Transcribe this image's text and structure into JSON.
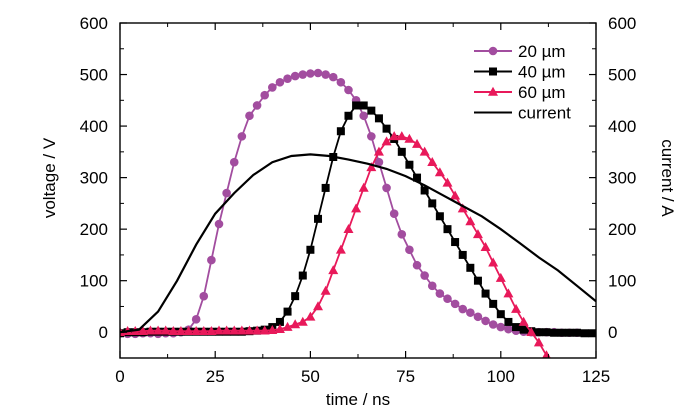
{
  "chart_data": {
    "type": "line",
    "xlabel": "time / ns",
    "ylabel": "voltage / V",
    "y2label": "current / A",
    "xlim": [
      0,
      125
    ],
    "ylim": [
      -50,
      600
    ],
    "y2lim": [
      -50,
      600
    ],
    "x_ticks": [
      "0",
      "25",
      "50",
      "75",
      "100",
      "125"
    ],
    "y_ticks": [
      "0",
      "100",
      "200",
      "300",
      "400",
      "500",
      "600"
    ],
    "y2_ticks": [
      "0",
      "100",
      "200",
      "300",
      "400",
      "500",
      "600"
    ],
    "grid": false,
    "legend_position": "top-right",
    "series": [
      {
        "name": "20 µm",
        "color": "#a24d9f",
        "marker": "circle",
        "axis": "left",
        "x": [
          0,
          2,
          4,
          6,
          8,
          10,
          12,
          14,
          16,
          18,
          20,
          22,
          24,
          26,
          28,
          30,
          32,
          34,
          36,
          38,
          40,
          42,
          44,
          46,
          48,
          50,
          52,
          54,
          56,
          58,
          60,
          62,
          64,
          66,
          68,
          70,
          72,
          74,
          76,
          78,
          80,
          82,
          84,
          86,
          88,
          90,
          92,
          94,
          96,
          98,
          100,
          102,
          104,
          106,
          108,
          110,
          112,
          114,
          116,
          118,
          120
        ],
        "y": [
          -2,
          -3,
          -3,
          -2,
          -2,
          -3,
          -2,
          -2,
          0,
          5,
          25,
          70,
          140,
          210,
          270,
          330,
          380,
          420,
          440,
          460,
          475,
          485,
          492,
          497,
          500,
          502,
          503,
          500,
          495,
          485,
          470,
          450,
          420,
          380,
          330,
          280,
          230,
          190,
          160,
          130,
          110,
          90,
          75,
          65,
          55,
          45,
          38,
          30,
          22,
          15,
          10,
          6,
          3,
          1,
          0,
          0,
          0,
          0,
          -1,
          -1,
          -1
        ]
      },
      {
        "name": "40 µm",
        "color": "#000000",
        "marker": "square",
        "axis": "left",
        "x": [
          0,
          2,
          4,
          6,
          8,
          10,
          12,
          14,
          16,
          18,
          20,
          22,
          24,
          26,
          28,
          30,
          32,
          34,
          36,
          38,
          40,
          42,
          44,
          46,
          48,
          50,
          52,
          54,
          56,
          58,
          60,
          62,
          64,
          66,
          68,
          70,
          72,
          74,
          76,
          78,
          80,
          82,
          84,
          86,
          88,
          90,
          92,
          94,
          96,
          98,
          100,
          102,
          104,
          106,
          108,
          110,
          112,
          114,
          116,
          118,
          120,
          122,
          124
        ],
        "y": [
          -2,
          0,
          0,
          0,
          1,
          1,
          1,
          1,
          1,
          1,
          1,
          1,
          1,
          1,
          1,
          1,
          1,
          2,
          3,
          5,
          10,
          20,
          40,
          70,
          110,
          160,
          220,
          280,
          340,
          390,
          420,
          440,
          440,
          430,
          415,
          395,
          375,
          350,
          325,
          300,
          275,
          250,
          225,
          200,
          175,
          150,
          125,
          100,
          75,
          55,
          35,
          20,
          10,
          5,
          2,
          0,
          0,
          -1,
          -1,
          -1,
          -1,
          -2,
          -2
        ]
      },
      {
        "name": "60 µm",
        "color": "#e8195a",
        "marker": "triangle",
        "axis": "left",
        "x": [
          0,
          2,
          4,
          6,
          8,
          10,
          12,
          14,
          16,
          18,
          20,
          22,
          24,
          26,
          28,
          30,
          32,
          34,
          36,
          38,
          40,
          42,
          44,
          46,
          48,
          50,
          52,
          54,
          56,
          58,
          60,
          62,
          64,
          66,
          68,
          70,
          72,
          74,
          76,
          78,
          80,
          82,
          84,
          86,
          88,
          90,
          92,
          94,
          96,
          98,
          100,
          102,
          104,
          106,
          108,
          110,
          112
        ],
        "y": [
          0,
          2,
          2,
          2,
          3,
          3,
          3,
          2,
          2,
          2,
          2,
          2,
          2,
          3,
          3,
          3,
          3,
          3,
          3,
          3,
          4,
          6,
          10,
          15,
          20,
          30,
          50,
          80,
          120,
          160,
          200,
          240,
          280,
          320,
          350,
          370,
          380,
          380,
          375,
          365,
          350,
          330,
          310,
          290,
          265,
          240,
          215,
          190,
          165,
          135,
          105,
          75,
          45,
          20,
          0,
          -20,
          -45
        ]
      },
      {
        "name": "current",
        "color": "#000000",
        "marker": "none",
        "axis": "right",
        "x": [
          0,
          5,
          10,
          15,
          20,
          25,
          30,
          35,
          40,
          45,
          50,
          55,
          60,
          65,
          70,
          75,
          80,
          85,
          90,
          95,
          100,
          105,
          110,
          115,
          120,
          125
        ],
        "y": [
          0,
          5,
          40,
          100,
          170,
          230,
          270,
          305,
          330,
          342,
          345,
          342,
          335,
          327,
          317,
          303,
          285,
          265,
          245,
          225,
          200,
          173,
          145,
          120,
          90,
          60
        ]
      }
    ]
  }
}
